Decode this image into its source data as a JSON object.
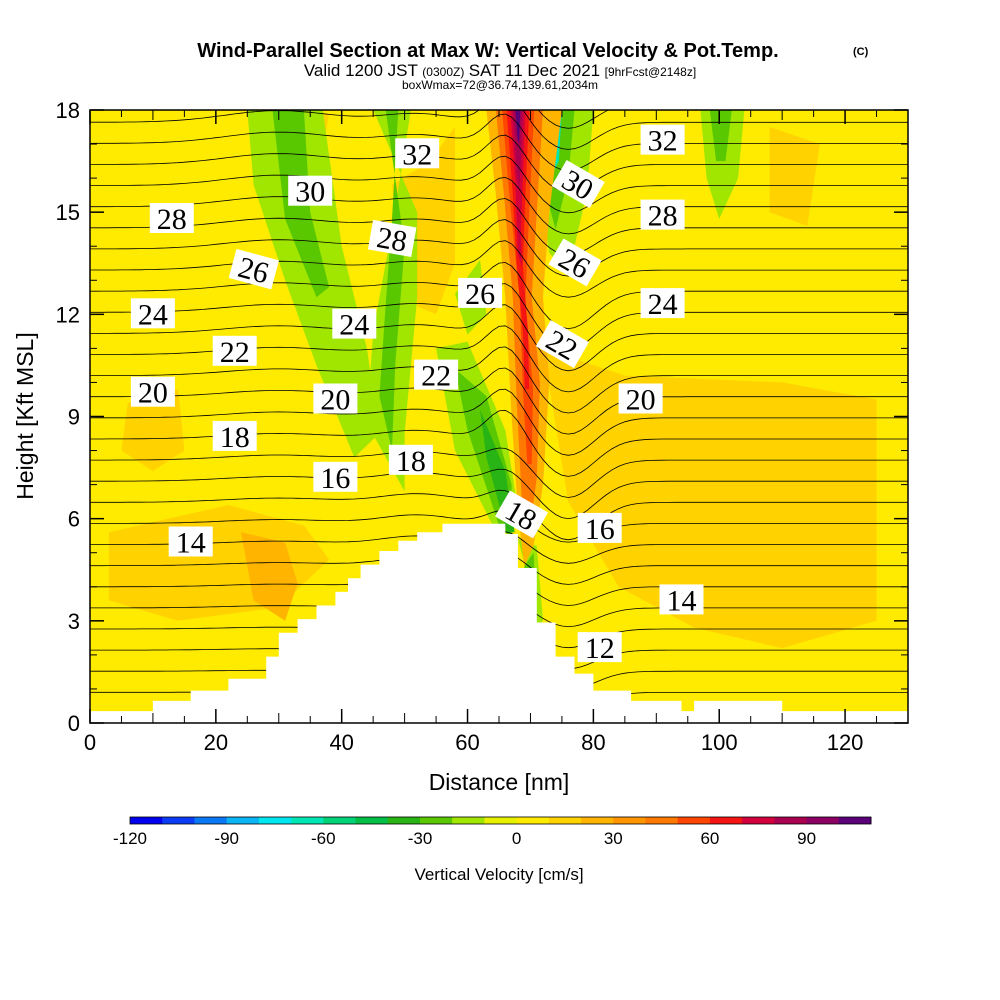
{
  "title": {
    "main": "Wind-Parallel Section at Max W: Vertical Velocity & Pot.Temp.",
    "mark": "(C)",
    "valid_prefix": "Valid 1200 JST",
    "valid_zulu": "(0300Z)",
    "valid_date": "SAT 11 Dec 2021",
    "fcst": "[9hrFcst@2148z]",
    "box": "boxWmax=72@36.74,139.61,2034m"
  },
  "chart_data": {
    "type": "heatmap",
    "xlabel": "Distance [nm]",
    "ylabel": "Height [Kft MSL]",
    "xlim": [
      0,
      130
    ],
    "ylim": [
      0,
      18
    ],
    "x_ticks": [
      0,
      20,
      40,
      60,
      80,
      100,
      120
    ],
    "y_ticks": [
      0,
      3,
      6,
      9,
      12,
      15,
      18
    ],
    "colorbar": {
      "title": "Vertical Velocity [cm/s]",
      "range": [
        -120,
        110
      ],
      "ticks": [
        -120,
        -90,
        -60,
        -30,
        0,
        30,
        60,
        90
      ],
      "colors": [
        "#0000f0",
        "#0a3cf5",
        "#0a78f5",
        "#0ab4f5",
        "#00e6f0",
        "#00e6b4",
        "#00d278",
        "#00be46",
        "#28b414",
        "#5ac800",
        "#a0e600",
        "#e6f000",
        "#ffeb00",
        "#ffd200",
        "#ffb400",
        "#ff9600",
        "#ff7800",
        "#ff4600",
        "#f51414",
        "#d2003c",
        "#aa0050",
        "#8c0064",
        "#5a0078"
      ]
    },
    "terrain_profile": [
      [
        0,
        0.35
      ],
      [
        10,
        0.35
      ],
      [
        10,
        0.65
      ],
      [
        16,
        0.65
      ],
      [
        16,
        0.95
      ],
      [
        22,
        0.95
      ],
      [
        22,
        1.3
      ],
      [
        28,
        1.3
      ],
      [
        28,
        1.95
      ],
      [
        30,
        1.95
      ],
      [
        30,
        2.65
      ],
      [
        33,
        2.65
      ],
      [
        33,
        3.05
      ],
      [
        36,
        3.05
      ],
      [
        36,
        3.45
      ],
      [
        39,
        3.45
      ],
      [
        39,
        3.85
      ],
      [
        41,
        3.85
      ],
      [
        41,
        4.25
      ],
      [
        43,
        4.25
      ],
      [
        43,
        4.65
      ],
      [
        46,
        4.65
      ],
      [
        46,
        5.05
      ],
      [
        49,
        5.05
      ],
      [
        49,
        5.35
      ],
      [
        52,
        5.35
      ],
      [
        52,
        5.6
      ],
      [
        56,
        5.6
      ],
      [
        56,
        5.85
      ],
      [
        66,
        5.85
      ],
      [
        66,
        5.55
      ],
      [
        68,
        5.55
      ],
      [
        68,
        4.55
      ],
      [
        71,
        4.55
      ],
      [
        71,
        2.95
      ],
      [
        74,
        2.95
      ],
      [
        74,
        1.95
      ],
      [
        77,
        1.95
      ],
      [
        77,
        1.45
      ],
      [
        80,
        1.45
      ],
      [
        80,
        0.95
      ],
      [
        86,
        0.95
      ],
      [
        86,
        0.65
      ],
      [
        94,
        0.65
      ],
      [
        94,
        0.35
      ],
      [
        96,
        0.35
      ],
      [
        96,
        0.65
      ],
      [
        110,
        0.65
      ],
      [
        110,
        0.35
      ],
      [
        130,
        0.35
      ]
    ],
    "potential_temperature_levels_C": [
      4,
      5,
      6,
      7,
      8,
      9,
      10,
      11,
      12,
      13,
      14,
      15,
      16,
      17,
      18,
      19,
      20,
      21,
      22,
      23,
      24,
      25,
      26,
      27,
      28,
      29,
      30,
      31,
      32,
      33,
      34
    ],
    "contour_labels": [
      {
        "value": "32",
        "x": 52,
        "y": 16.7,
        "angle": 0
      },
      {
        "value": "30",
        "x": 35,
        "y": 15.6,
        "angle": 0
      },
      {
        "value": "28",
        "x": 13,
        "y": 14.8,
        "angle": 0
      },
      {
        "value": "28",
        "x": 48,
        "y": 14.2,
        "angle": 10
      },
      {
        "value": "26",
        "x": 26,
        "y": 13.3,
        "angle": 15
      },
      {
        "value": "26",
        "x": 62,
        "y": 12.6,
        "angle": 0
      },
      {
        "value": "24",
        "x": 10,
        "y": 12.0,
        "angle": 0
      },
      {
        "value": "24",
        "x": 42,
        "y": 11.7,
        "angle": 0
      },
      {
        "value": "22",
        "x": 23,
        "y": 10.9,
        "angle": 0
      },
      {
        "value": "22",
        "x": 55,
        "y": 10.2,
        "angle": 0
      },
      {
        "value": "20",
        "x": 10,
        "y": 9.7,
        "angle": 0
      },
      {
        "value": "20",
        "x": 39,
        "y": 9.5,
        "angle": 0
      },
      {
        "value": "18",
        "x": 23,
        "y": 8.4,
        "angle": 0
      },
      {
        "value": "18",
        "x": 51,
        "y": 7.7,
        "angle": 0
      },
      {
        "value": "16",
        "x": 39,
        "y": 7.2,
        "angle": 0
      },
      {
        "value": "14",
        "x": 16,
        "y": 5.3,
        "angle": 0
      },
      {
        "value": "18",
        "x": 68.5,
        "y": 6.1,
        "angle": 30
      },
      {
        "value": "16",
        "x": 81,
        "y": 5.7,
        "angle": 0
      },
      {
        "value": "14",
        "x": 94,
        "y": 3.6,
        "angle": 0
      },
      {
        "value": "12",
        "x": 81,
        "y": 2.2,
        "angle": 0
      },
      {
        "value": "20",
        "x": 87.5,
        "y": 9.5,
        "angle": 0
      },
      {
        "value": "22",
        "x": 75,
        "y": 11.1,
        "angle": 30
      },
      {
        "value": "24",
        "x": 91,
        "y": 12.3,
        "angle": 0
      },
      {
        "value": "26",
        "x": 77,
        "y": 13.5,
        "angle": 30
      },
      {
        "value": "28",
        "x": 91,
        "y": 14.9,
        "angle": 0
      },
      {
        "value": "30",
        "x": 77.5,
        "y": 15.8,
        "angle": 30
      },
      {
        "value": "32",
        "x": 91,
        "y": 17.1,
        "angle": 0
      }
    ]
  }
}
